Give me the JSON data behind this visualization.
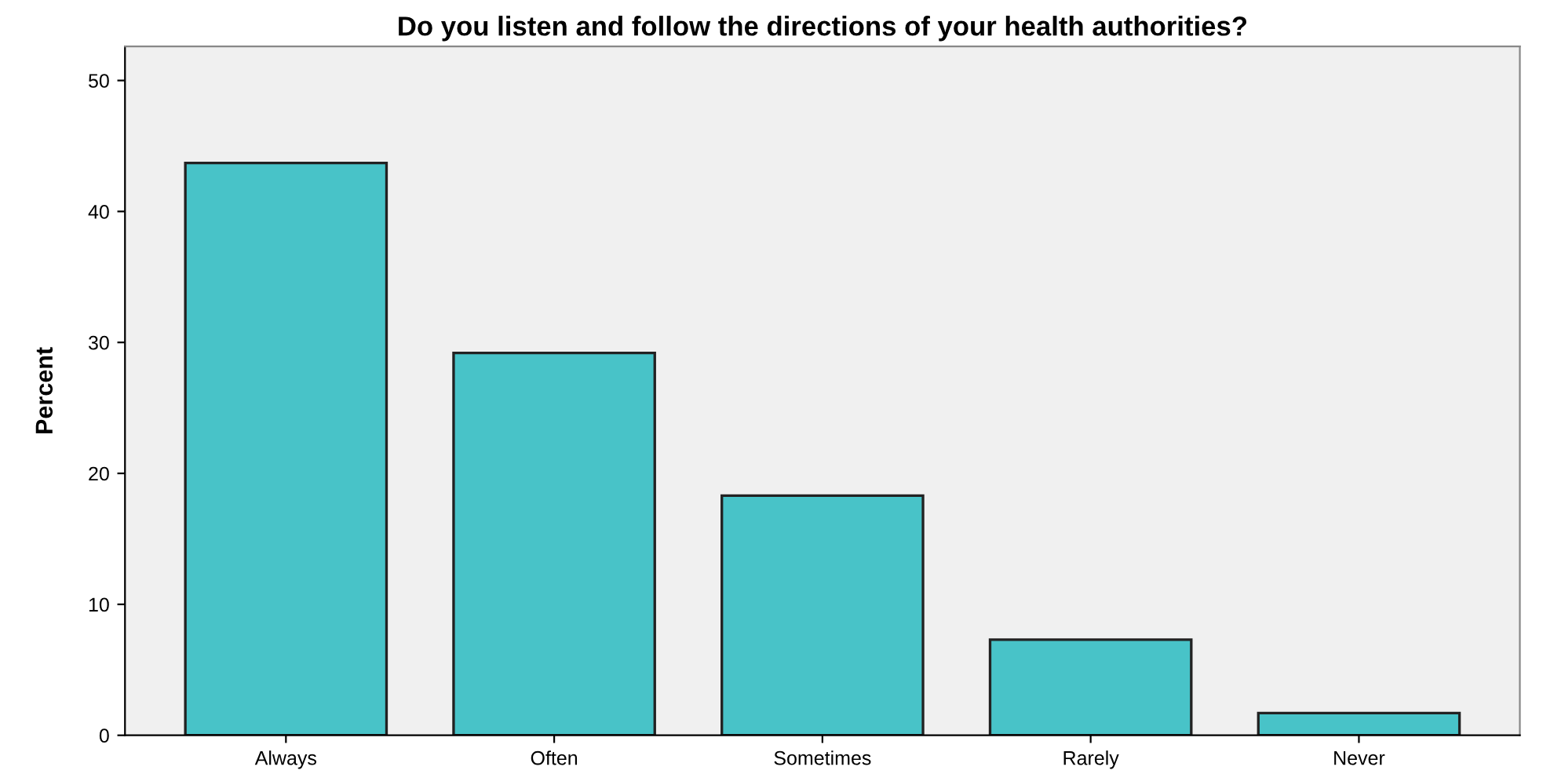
{
  "chart_data": {
    "type": "bar",
    "title": "Do you listen and follow the directions of your health authorities?",
    "ylabel": "Percent",
    "categories": [
      "Always",
      "Often",
      "Sometimes",
      "Rarely",
      "Never"
    ],
    "values": [
      43.7,
      29.2,
      18.3,
      7.3,
      1.7
    ],
    "color": "#48c3c8",
    "ylim": [
      0,
      52.6
    ],
    "yticks": [
      0,
      10,
      20,
      30,
      40,
      50
    ],
    "grid": false,
    "legend": false
  }
}
